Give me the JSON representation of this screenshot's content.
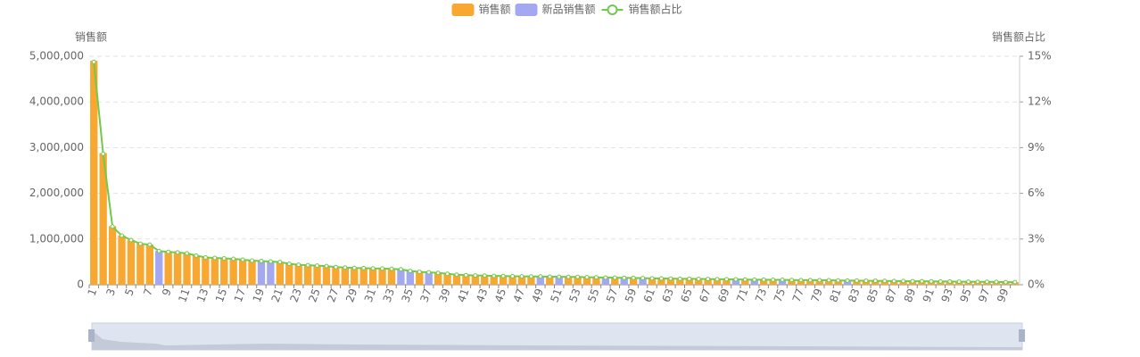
{
  "chart_data": {
    "type": "bar-line",
    "y_label": "销售额",
    "y2_label": "销售额占比",
    "categories": [
      "1",
      null,
      "3",
      null,
      "5",
      null,
      "7",
      null,
      "9",
      null,
      "11",
      null,
      "13",
      null,
      "15",
      null,
      "17",
      null,
      "19",
      null,
      "21",
      null,
      "23",
      null,
      "25",
      null,
      "27",
      null,
      "29",
      null,
      "31",
      null,
      "33",
      null,
      "35",
      null,
      "37",
      null,
      "39",
      null,
      "41",
      null,
      "43",
      null,
      "45",
      null,
      "47",
      null,
      "49",
      null,
      "51",
      null,
      "53",
      null,
      "55",
      null,
      "57",
      null,
      "59",
      null,
      "61",
      null,
      "63",
      null,
      "65",
      null,
      "67",
      null,
      "69",
      null,
      "71",
      null,
      "73",
      null,
      "75",
      null,
      "77",
      null,
      "79",
      null,
      "81",
      null,
      "83",
      null,
      "85",
      null,
      "87",
      null,
      "89",
      null,
      "91",
      null,
      "93",
      null,
      "95",
      null,
      "97",
      null,
      "99",
      null
    ],
    "series": [
      {
        "name": "销售额",
        "kind": "bar",
        "color": "#f8a831",
        "values": [
          4900000,
          2880000,
          1280000,
          1080000,
          980000,
          900000,
          880000,
          null,
          720000,
          710000,
          690000,
          640000,
          600000,
          590000,
          580000,
          570000,
          550000,
          530000,
          null,
          null,
          500000,
          460000,
          440000,
          430000,
          420000,
          410000,
          390000,
          380000,
          370000,
          365000,
          360000,
          355000,
          350000,
          null,
          null,
          280000,
          null,
          260000,
          240000,
          220000,
          210000,
          205000,
          200000,
          195000,
          190000,
          188000,
          185000,
          182000,
          null,
          178000,
          null,
          172000,
          170000,
          165000,
          160000,
          null,
          155000,
          null,
          150000,
          null,
          140000,
          138000,
          135000,
          132000,
          130000,
          128000,
          125000,
          122000,
          120000,
          null,
          115000,
          null,
          110000,
          108000,
          null,
          104000,
          102000,
          100000,
          98000,
          96000,
          94000,
          null,
          90000,
          88000,
          86000,
          84000,
          82000,
          80000,
          78000,
          76000,
          74000,
          72000,
          70000,
          68000,
          66000,
          64000,
          62000,
          60000,
          58000,
          56000
        ]
      },
      {
        "name": "新品销售额",
        "kind": "bar",
        "color": "#a3a8f0",
        "values": [
          null,
          null,
          null,
          null,
          null,
          null,
          null,
          740000,
          null,
          null,
          null,
          null,
          null,
          null,
          null,
          null,
          null,
          null,
          520000,
          510000,
          null,
          null,
          null,
          null,
          null,
          null,
          null,
          null,
          null,
          null,
          null,
          null,
          null,
          340000,
          300000,
          null,
          270000,
          null,
          null,
          null,
          null,
          null,
          null,
          null,
          null,
          null,
          null,
          null,
          180000,
          null,
          175000,
          null,
          null,
          null,
          null,
          158000,
          null,
          152000,
          null,
          145000,
          null,
          null,
          null,
          null,
          null,
          null,
          null,
          null,
          null,
          118000,
          null,
          112000,
          null,
          null,
          106000,
          null,
          null,
          null,
          null,
          null,
          null,
          92000,
          null,
          null,
          null,
          null,
          null,
          null,
          null,
          null,
          null,
          null,
          null,
          null,
          null,
          null,
          null,
          null,
          null,
          null
        ]
      },
      {
        "name": "销售额占比",
        "kind": "line",
        "axis": "y2",
        "color": "#72c94b",
        "values": [
          14.63,
          8.6,
          3.82,
          3.22,
          2.93,
          2.69,
          2.63,
          2.21,
          2.15,
          2.12,
          2.06,
          1.91,
          1.79,
          1.76,
          1.73,
          1.7,
          1.64,
          1.58,
          1.55,
          1.52,
          1.49,
          1.37,
          1.31,
          1.28,
          1.25,
          1.22,
          1.16,
          1.13,
          1.1,
          1.09,
          1.07,
          1.06,
          1.04,
          1.01,
          0.9,
          0.84,
          0.81,
          0.78,
          0.72,
          0.66,
          0.63,
          0.61,
          0.6,
          0.58,
          0.57,
          0.56,
          0.55,
          0.54,
          0.54,
          0.53,
          0.52,
          0.51,
          0.51,
          0.49,
          0.48,
          0.47,
          0.46,
          0.45,
          0.45,
          0.43,
          0.42,
          0.41,
          0.4,
          0.39,
          0.39,
          0.38,
          0.37,
          0.36,
          0.36,
          0.35,
          0.34,
          0.33,
          0.33,
          0.32,
          0.32,
          0.31,
          0.3,
          0.3,
          0.29,
          0.29,
          0.28,
          0.27,
          0.27,
          0.26,
          0.26,
          0.25,
          0.24,
          0.24,
          0.23,
          0.23,
          0.22,
          0.21,
          0.21,
          0.2,
          0.2,
          0.19,
          0.19,
          0.18,
          0.17,
          0.17
        ]
      }
    ],
    "ylim": [
      0,
      5000000
    ],
    "yticks": [
      0,
      {
        "value": 1000000,
        "label": "1,000,000"
      },
      {
        "value": 2000000,
        "label": "2,000,000"
      },
      {
        "value": 3000000,
        "label": "3,000,000"
      },
      {
        "value": 4000000,
        "label": "4,000,000"
      },
      {
        "value": 5000000,
        "label": "5,000,000"
      }
    ],
    "y2lim": [
      0,
      15
    ],
    "y2ticks": [
      {
        "value": 0,
        "label": "0%"
      },
      {
        "value": 3,
        "label": "3%"
      },
      {
        "value": 6,
        "label": "6%"
      },
      {
        "value": 9,
        "label": "9%"
      },
      {
        "value": 12,
        "label": "12%"
      },
      {
        "value": 15,
        "label": "15%"
      }
    ],
    "grid": true,
    "legend": "top"
  }
}
